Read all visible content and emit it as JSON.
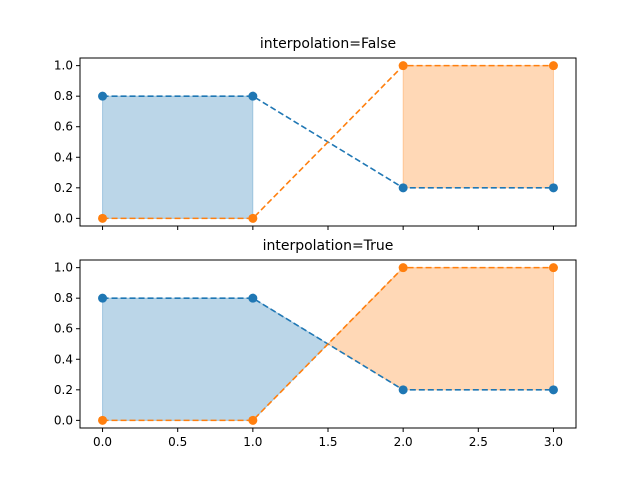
{
  "chart_data": [
    {
      "type": "line",
      "title": "interpolation=False",
      "x": [
        0,
        1,
        2,
        3
      ],
      "series": [
        {
          "values": [
            0.8,
            0.8,
            0.2,
            0.2
          ],
          "color": "#1f77b4"
        },
        {
          "values": [
            0.0,
            0.0,
            1.0,
            1.0
          ],
          "color": "#ff7f0e"
        }
      ],
      "fill_between": {
        "interpolate": false
      },
      "xlim": [
        -0.15,
        3.15
      ],
      "ylim": [
        -0.05,
        1.05
      ],
      "yticks": [
        "0.0",
        "0.2",
        "0.4",
        "0.6",
        "0.8",
        "1.0"
      ],
      "xticks": [],
      "grid": false
    },
    {
      "type": "line",
      "title": "interpolation=True",
      "x": [
        0,
        1,
        2,
        3
      ],
      "series": [
        {
          "values": [
            0.8,
            0.8,
            0.2,
            0.2
          ],
          "color": "#1f77b4"
        },
        {
          "values": [
            0.0,
            0.0,
            1.0,
            1.0
          ],
          "color": "#ff7f0e"
        }
      ],
      "fill_between": {
        "interpolate": true
      },
      "xlim": [
        -0.15,
        3.15
      ],
      "ylim": [
        -0.05,
        1.05
      ],
      "yticks": [
        "0.0",
        "0.2",
        "0.4",
        "0.6",
        "0.8",
        "1.0"
      ],
      "xticks": [
        "0.0",
        "0.5",
        "1.0",
        "1.5",
        "2.0",
        "2.5",
        "3.0"
      ],
      "grid": false
    }
  ]
}
